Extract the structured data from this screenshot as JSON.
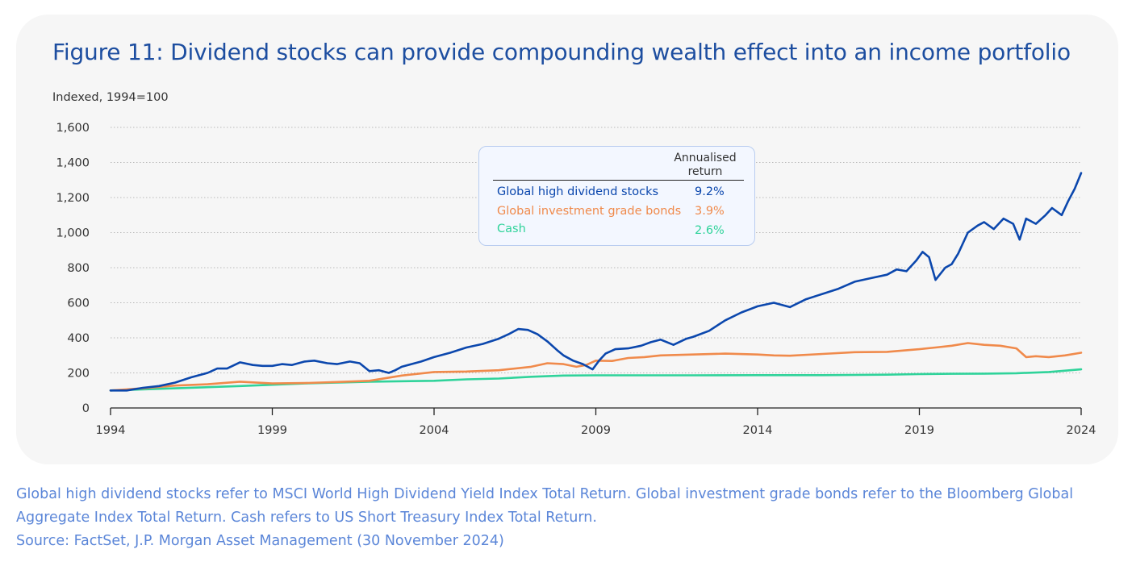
{
  "title": "Figure 11: Dividend stocks can provide compounding wealth effect into an income portfolio",
  "footnote": {
    "line1": "Global high dividend stocks refer to MSCI World High Dividend Yield Index Total Return. Global investment grade bonds refer to the Bloomberg Global",
    "line2": "Aggregate Index Total Return. Cash refers to US Short Treasury Index Total Return.",
    "line3": "Source: FactSet, J.P. Morgan Asset Management (30 November 2024)"
  },
  "legend": {
    "header_line1": "Annualised",
    "header_line2": "return",
    "rows": [
      {
        "label": "Global high dividend stocks",
        "value": "9.2%",
        "color": "#0b47ad"
      },
      {
        "label": "Global investment grade bonds",
        "value": "3.9%",
        "color": "#f08a4b"
      },
      {
        "label": "Cash",
        "value": "2.6%",
        "color": "#2fd39a"
      }
    ]
  },
  "chart_data": {
    "type": "line",
    "title": "Figure 11: Dividend stocks can provide compounding wealth effect into an income portfolio",
    "ylabel": "Indexed, 1994=100",
    "xlabel": "",
    "ylim": [
      0,
      1600
    ],
    "xlim": [
      1994,
      2024.0
    ],
    "yticks": [
      "0",
      "200",
      "400",
      "600",
      "800",
      "1,000",
      "1,200",
      "1,400",
      "1,600"
    ],
    "ytick_values": [
      0,
      200,
      400,
      600,
      800,
      1000,
      1200,
      1400,
      1600
    ],
    "xticks": [
      "1994",
      "1999",
      "2004",
      "2009",
      "2014",
      "2019",
      "2024"
    ],
    "xtick_values": [
      1994,
      1999,
      2004,
      2009,
      2014,
      2019,
      2024
    ],
    "grid": "horizontal dotted",
    "legend_placement": "top-center",
    "series": [
      {
        "name": "Global high dividend stocks",
        "color": "#0b47ad",
        "x": [
          1994.0,
          1994.5,
          1995.0,
          1995.5,
          1996.0,
          1996.5,
          1997.0,
          1997.3,
          1997.6,
          1998.0,
          1998.4,
          1998.7,
          1999.0,
          1999.3,
          1999.6,
          2000.0,
          2000.3,
          2000.7,
          2001.0,
          2001.4,
          2001.7,
          2002.0,
          2002.3,
          2002.6,
          2002.8,
          2003.0,
          2003.3,
          2003.6,
          2004.0,
          2004.5,
          2005.0,
          2005.5,
          2006.0,
          2006.3,
          2006.6,
          2006.9,
          2007.2,
          2007.5,
          2007.8,
          2008.0,
          2008.3,
          2008.6,
          2008.9,
          2009.1,
          2009.3,
          2009.6,
          2010.0,
          2010.4,
          2010.7,
          2011.0,
          2011.4,
          2011.8,
          2012.0,
          2012.5,
          2013.0,
          2013.5,
          2014.0,
          2014.5,
          2015.0,
          2015.5,
          2016.0,
          2016.5,
          2017.0,
          2017.5,
          2018.0,
          2018.3,
          2018.6,
          2018.9,
          2019.1,
          2019.3,
          2019.5,
          2019.8,
          2020.0,
          2020.2,
          2020.5,
          2020.8,
          2021.0,
          2021.3,
          2021.6,
          2021.9,
          2022.1,
          2022.3,
          2022.6,
          2022.9,
          2023.1,
          2023.4,
          2023.6,
          2023.8,
          2024.0
        ],
        "values": [
          100,
          100,
          115,
          125,
          145,
          175,
          200,
          225,
          225,
          260,
          245,
          240,
          240,
          250,
          245,
          265,
          270,
          255,
          250,
          265,
          255,
          210,
          215,
          200,
          215,
          235,
          250,
          265,
          290,
          315,
          345,
          365,
          395,
          420,
          450,
          445,
          420,
          380,
          330,
          300,
          270,
          250,
          220,
          270,
          310,
          335,
          340,
          355,
          375,
          390,
          360,
          395,
          405,
          440,
          500,
          545,
          580,
          600,
          575,
          620,
          650,
          680,
          720,
          740,
          760,
          790,
          780,
          840,
          890,
          860,
          730,
          800,
          820,
          880,
          1000,
          1040,
          1060,
          1020,
          1080,
          1050,
          960,
          1080,
          1050,
          1100,
          1140,
          1100,
          1180,
          1250,
          1340
        ]
      },
      {
        "name": "Global investment grade bonds",
        "color": "#f08a4b",
        "x": [
          1994.0,
          1995.0,
          1996.0,
          1997.0,
          1998.0,
          1999.0,
          2000.0,
          2001.0,
          2002.0,
          2003.0,
          2004.0,
          2005.0,
          2006.0,
          2007.0,
          2007.5,
          2008.0,
          2008.4,
          2008.7,
          2009.0,
          2009.5,
          2010.0,
          2010.5,
          2011.0,
          2012.0,
          2013.0,
          2014.0,
          2014.5,
          2015.0,
          2016.0,
          2017.0,
          2018.0,
          2019.0,
          2019.5,
          2020.0,
          2020.5,
          2021.0,
          2021.5,
          2022.0,
          2022.3,
          2022.6,
          2023.0,
          2023.5,
          2024.0
        ],
        "values": [
          100,
          112,
          128,
          135,
          150,
          140,
          142,
          148,
          155,
          185,
          205,
          208,
          215,
          235,
          255,
          250,
          235,
          245,
          270,
          268,
          285,
          290,
          300,
          305,
          310,
          305,
          300,
          298,
          308,
          318,
          320,
          335,
          345,
          355,
          370,
          360,
          355,
          340,
          290,
          295,
          290,
          300,
          315
        ]
      },
      {
        "name": "Cash",
        "color": "#2fd39a",
        "x": [
          1994.0,
          1996.0,
          1998.0,
          2000.0,
          2002.0,
          2004.0,
          2005.0,
          2006.0,
          2007.0,
          2008.0,
          2009.0,
          2010.0,
          2012.0,
          2014.0,
          2016.0,
          2018.0,
          2019.0,
          2020.0,
          2021.0,
          2022.0,
          2023.0,
          2024.0
        ],
        "values": [
          100,
          112,
          125,
          140,
          150,
          155,
          163,
          168,
          178,
          185,
          186,
          186,
          186,
          187,
          187,
          190,
          193,
          195,
          196,
          198,
          205,
          220
        ]
      }
    ]
  }
}
